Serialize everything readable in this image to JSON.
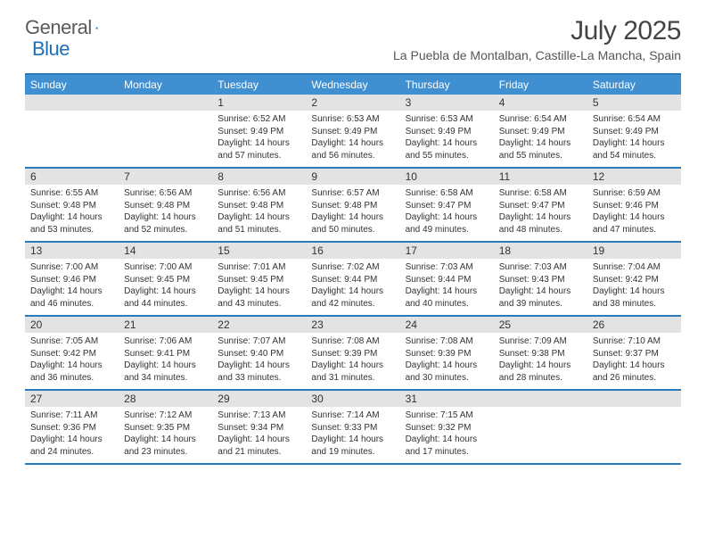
{
  "brand": {
    "text1": "General",
    "text2": "Blue"
  },
  "title": "July 2025",
  "location": "La Puebla de Montalban, Castille-La Mancha, Spain",
  "colors": {
    "header_bg": "#3f8fd1",
    "rule": "#2a7ab9",
    "daynum_bg": "#e3e3e3",
    "brand_blue": "#1f6db5"
  },
  "weekdays": [
    "Sunday",
    "Monday",
    "Tuesday",
    "Wednesday",
    "Thursday",
    "Friday",
    "Saturday"
  ],
  "weeks": [
    [
      {
        "n": "",
        "sr": "",
        "ss": "",
        "dl": ""
      },
      {
        "n": "",
        "sr": "",
        "ss": "",
        "dl": ""
      },
      {
        "n": "1",
        "sr": "Sunrise: 6:52 AM",
        "ss": "Sunset: 9:49 PM",
        "dl": "Daylight: 14 hours and 57 minutes."
      },
      {
        "n": "2",
        "sr": "Sunrise: 6:53 AM",
        "ss": "Sunset: 9:49 PM",
        "dl": "Daylight: 14 hours and 56 minutes."
      },
      {
        "n": "3",
        "sr": "Sunrise: 6:53 AM",
        "ss": "Sunset: 9:49 PM",
        "dl": "Daylight: 14 hours and 55 minutes."
      },
      {
        "n": "4",
        "sr": "Sunrise: 6:54 AM",
        "ss": "Sunset: 9:49 PM",
        "dl": "Daylight: 14 hours and 55 minutes."
      },
      {
        "n": "5",
        "sr": "Sunrise: 6:54 AM",
        "ss": "Sunset: 9:49 PM",
        "dl": "Daylight: 14 hours and 54 minutes."
      }
    ],
    [
      {
        "n": "6",
        "sr": "Sunrise: 6:55 AM",
        "ss": "Sunset: 9:48 PM",
        "dl": "Daylight: 14 hours and 53 minutes."
      },
      {
        "n": "7",
        "sr": "Sunrise: 6:56 AM",
        "ss": "Sunset: 9:48 PM",
        "dl": "Daylight: 14 hours and 52 minutes."
      },
      {
        "n": "8",
        "sr": "Sunrise: 6:56 AM",
        "ss": "Sunset: 9:48 PM",
        "dl": "Daylight: 14 hours and 51 minutes."
      },
      {
        "n": "9",
        "sr": "Sunrise: 6:57 AM",
        "ss": "Sunset: 9:48 PM",
        "dl": "Daylight: 14 hours and 50 minutes."
      },
      {
        "n": "10",
        "sr": "Sunrise: 6:58 AM",
        "ss": "Sunset: 9:47 PM",
        "dl": "Daylight: 14 hours and 49 minutes."
      },
      {
        "n": "11",
        "sr": "Sunrise: 6:58 AM",
        "ss": "Sunset: 9:47 PM",
        "dl": "Daylight: 14 hours and 48 minutes."
      },
      {
        "n": "12",
        "sr": "Sunrise: 6:59 AM",
        "ss": "Sunset: 9:46 PM",
        "dl": "Daylight: 14 hours and 47 minutes."
      }
    ],
    [
      {
        "n": "13",
        "sr": "Sunrise: 7:00 AM",
        "ss": "Sunset: 9:46 PM",
        "dl": "Daylight: 14 hours and 46 minutes."
      },
      {
        "n": "14",
        "sr": "Sunrise: 7:00 AM",
        "ss": "Sunset: 9:45 PM",
        "dl": "Daylight: 14 hours and 44 minutes."
      },
      {
        "n": "15",
        "sr": "Sunrise: 7:01 AM",
        "ss": "Sunset: 9:45 PM",
        "dl": "Daylight: 14 hours and 43 minutes."
      },
      {
        "n": "16",
        "sr": "Sunrise: 7:02 AM",
        "ss": "Sunset: 9:44 PM",
        "dl": "Daylight: 14 hours and 42 minutes."
      },
      {
        "n": "17",
        "sr": "Sunrise: 7:03 AM",
        "ss": "Sunset: 9:44 PM",
        "dl": "Daylight: 14 hours and 40 minutes."
      },
      {
        "n": "18",
        "sr": "Sunrise: 7:03 AM",
        "ss": "Sunset: 9:43 PM",
        "dl": "Daylight: 14 hours and 39 minutes."
      },
      {
        "n": "19",
        "sr": "Sunrise: 7:04 AM",
        "ss": "Sunset: 9:42 PM",
        "dl": "Daylight: 14 hours and 38 minutes."
      }
    ],
    [
      {
        "n": "20",
        "sr": "Sunrise: 7:05 AM",
        "ss": "Sunset: 9:42 PM",
        "dl": "Daylight: 14 hours and 36 minutes."
      },
      {
        "n": "21",
        "sr": "Sunrise: 7:06 AM",
        "ss": "Sunset: 9:41 PM",
        "dl": "Daylight: 14 hours and 34 minutes."
      },
      {
        "n": "22",
        "sr": "Sunrise: 7:07 AM",
        "ss": "Sunset: 9:40 PM",
        "dl": "Daylight: 14 hours and 33 minutes."
      },
      {
        "n": "23",
        "sr": "Sunrise: 7:08 AM",
        "ss": "Sunset: 9:39 PM",
        "dl": "Daylight: 14 hours and 31 minutes."
      },
      {
        "n": "24",
        "sr": "Sunrise: 7:08 AM",
        "ss": "Sunset: 9:39 PM",
        "dl": "Daylight: 14 hours and 30 minutes."
      },
      {
        "n": "25",
        "sr": "Sunrise: 7:09 AM",
        "ss": "Sunset: 9:38 PM",
        "dl": "Daylight: 14 hours and 28 minutes."
      },
      {
        "n": "26",
        "sr": "Sunrise: 7:10 AM",
        "ss": "Sunset: 9:37 PM",
        "dl": "Daylight: 14 hours and 26 minutes."
      }
    ],
    [
      {
        "n": "27",
        "sr": "Sunrise: 7:11 AM",
        "ss": "Sunset: 9:36 PM",
        "dl": "Daylight: 14 hours and 24 minutes."
      },
      {
        "n": "28",
        "sr": "Sunrise: 7:12 AM",
        "ss": "Sunset: 9:35 PM",
        "dl": "Daylight: 14 hours and 23 minutes."
      },
      {
        "n": "29",
        "sr": "Sunrise: 7:13 AM",
        "ss": "Sunset: 9:34 PM",
        "dl": "Daylight: 14 hours and 21 minutes."
      },
      {
        "n": "30",
        "sr": "Sunrise: 7:14 AM",
        "ss": "Sunset: 9:33 PM",
        "dl": "Daylight: 14 hours and 19 minutes."
      },
      {
        "n": "31",
        "sr": "Sunrise: 7:15 AM",
        "ss": "Sunset: 9:32 PM",
        "dl": "Daylight: 14 hours and 17 minutes."
      },
      {
        "n": "",
        "sr": "",
        "ss": "",
        "dl": ""
      },
      {
        "n": "",
        "sr": "",
        "ss": "",
        "dl": ""
      }
    ]
  ]
}
